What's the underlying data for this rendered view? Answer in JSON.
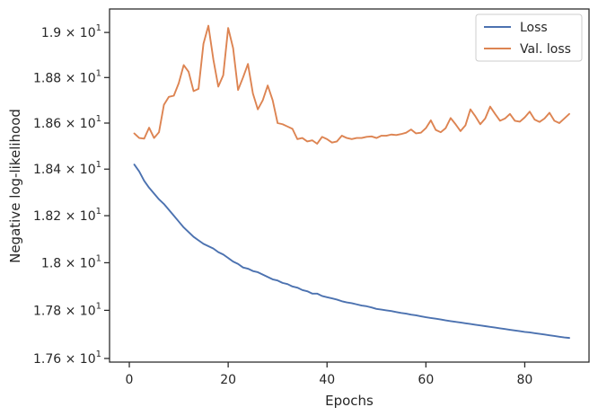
{
  "chart_data": {
    "type": "line",
    "title": "",
    "xlabel": "Epochs",
    "ylabel": "Negative log-likelihood",
    "xlim": [
      -4,
      93
    ],
    "ylim": [
      17.585,
      19.105
    ],
    "xticks": [
      0,
      20,
      40,
      60,
      80
    ],
    "xtick_labels": [
      "0",
      "20",
      "40",
      "60",
      "80"
    ],
    "yticks": [
      17.6,
      17.8,
      18.0,
      18.2,
      18.4,
      18.6,
      18.8,
      19.0
    ],
    "ytick_labels": [
      {
        "mant": "1.76",
        "base": "10",
        "exp": "1"
      },
      {
        "mant": "1.78",
        "base": "10",
        "exp": "1"
      },
      {
        "mant": "1.8",
        "base": "10",
        "exp": "1"
      },
      {
        "mant": "1.82",
        "base": "10",
        "exp": "1"
      },
      {
        "mant": "1.84",
        "base": "10",
        "exp": "1"
      },
      {
        "mant": "1.86",
        "base": "10",
        "exp": "1"
      },
      {
        "mant": "1.88",
        "base": "10",
        "exp": "1"
      },
      {
        "mant": "1.9",
        "base": "10",
        "exp": "1"
      }
    ],
    "legend_position": "top-right",
    "grid": false,
    "series": [
      {
        "name": "Loss",
        "color": "#4c72b0",
        "x": [
          1,
          2,
          3,
          4,
          5,
          6,
          7,
          8,
          9,
          10,
          11,
          12,
          13,
          14,
          15,
          16,
          17,
          18,
          19,
          20,
          21,
          22,
          23,
          24,
          25,
          26,
          27,
          28,
          29,
          30,
          31,
          32,
          33,
          34,
          35,
          36,
          37,
          38,
          39,
          40,
          41,
          42,
          43,
          44,
          45,
          46,
          47,
          48,
          49,
          50,
          51,
          52,
          53,
          54,
          55,
          56,
          57,
          58,
          59,
          60,
          61,
          62,
          63,
          64,
          65,
          66,
          67,
          68,
          69,
          70,
          71,
          72,
          73,
          74,
          75,
          76,
          77,
          78,
          79,
          80,
          81,
          82,
          83,
          84,
          85,
          86,
          87,
          88,
          89
        ],
        "values": [
          18.42,
          18.39,
          18.35,
          18.32,
          18.295,
          18.27,
          18.25,
          18.225,
          18.2,
          18.175,
          18.15,
          18.13,
          18.11,
          18.095,
          18.08,
          18.07,
          18.06,
          18.045,
          18.035,
          18.02,
          18.005,
          17.995,
          17.98,
          17.975,
          17.965,
          17.96,
          17.95,
          17.94,
          17.93,
          17.925,
          17.915,
          17.91,
          17.9,
          17.895,
          17.885,
          17.88,
          17.87,
          17.87,
          17.86,
          17.855,
          17.85,
          17.845,
          17.838,
          17.833,
          17.83,
          17.825,
          17.82,
          17.817,
          17.812,
          17.806,
          17.803,
          17.8,
          17.797,
          17.793,
          17.789,
          17.786,
          17.782,
          17.779,
          17.775,
          17.771,
          17.768,
          17.765,
          17.762,
          17.758,
          17.755,
          17.752,
          17.749,
          17.746,
          17.743,
          17.74,
          17.737,
          17.734,
          17.731,
          17.728,
          17.725,
          17.722,
          17.719,
          17.716,
          17.713,
          17.71,
          17.708,
          17.705,
          17.702,
          17.699,
          17.696,
          17.693,
          17.69,
          17.687,
          17.685
        ]
      },
      {
        "name": "Val. loss",
        "color": "#dd8452",
        "x": [
          1,
          2,
          3,
          4,
          5,
          6,
          7,
          8,
          9,
          10,
          11,
          12,
          13,
          14,
          15,
          16,
          17,
          18,
          19,
          20,
          21,
          22,
          23,
          24,
          25,
          26,
          27,
          28,
          29,
          30,
          31,
          32,
          33,
          34,
          35,
          36,
          37,
          38,
          39,
          40,
          41,
          42,
          43,
          44,
          45,
          46,
          47,
          48,
          49,
          50,
          51,
          52,
          53,
          54,
          55,
          56,
          57,
          58,
          59,
          60,
          61,
          62,
          63,
          64,
          65,
          66,
          67,
          68,
          69,
          70,
          71,
          72,
          73,
          74,
          75,
          76,
          77,
          78,
          79,
          80,
          81,
          82,
          83,
          84,
          85,
          86,
          87,
          88,
          89
        ],
        "values": [
          18.555,
          18.535,
          18.532,
          18.58,
          18.535,
          18.56,
          18.68,
          18.715,
          18.72,
          18.775,
          18.855,
          18.825,
          18.74,
          18.75,
          18.95,
          19.03,
          18.88,
          18.76,
          18.81,
          19.02,
          18.93,
          18.745,
          18.8,
          18.86,
          18.73,
          18.66,
          18.7,
          18.765,
          18.7,
          18.6,
          18.595,
          18.585,
          18.575,
          18.53,
          18.535,
          18.52,
          18.525,
          18.51,
          18.54,
          18.53,
          18.515,
          18.52,
          18.545,
          18.535,
          18.53,
          18.535,
          18.535,
          18.54,
          18.542,
          18.535,
          18.545,
          18.545,
          18.55,
          18.548,
          18.552,
          18.558,
          18.572,
          18.555,
          18.558,
          18.578,
          18.612,
          18.57,
          18.56,
          18.578,
          18.622,
          18.595,
          18.565,
          18.59,
          18.66,
          18.63,
          18.595,
          18.62,
          18.672,
          18.64,
          18.61,
          18.62,
          18.64,
          18.61,
          18.606,
          18.625,
          18.65,
          18.615,
          18.605,
          18.62,
          18.645,
          18.61,
          18.6,
          18.62,
          18.64
        ]
      }
    ]
  }
}
